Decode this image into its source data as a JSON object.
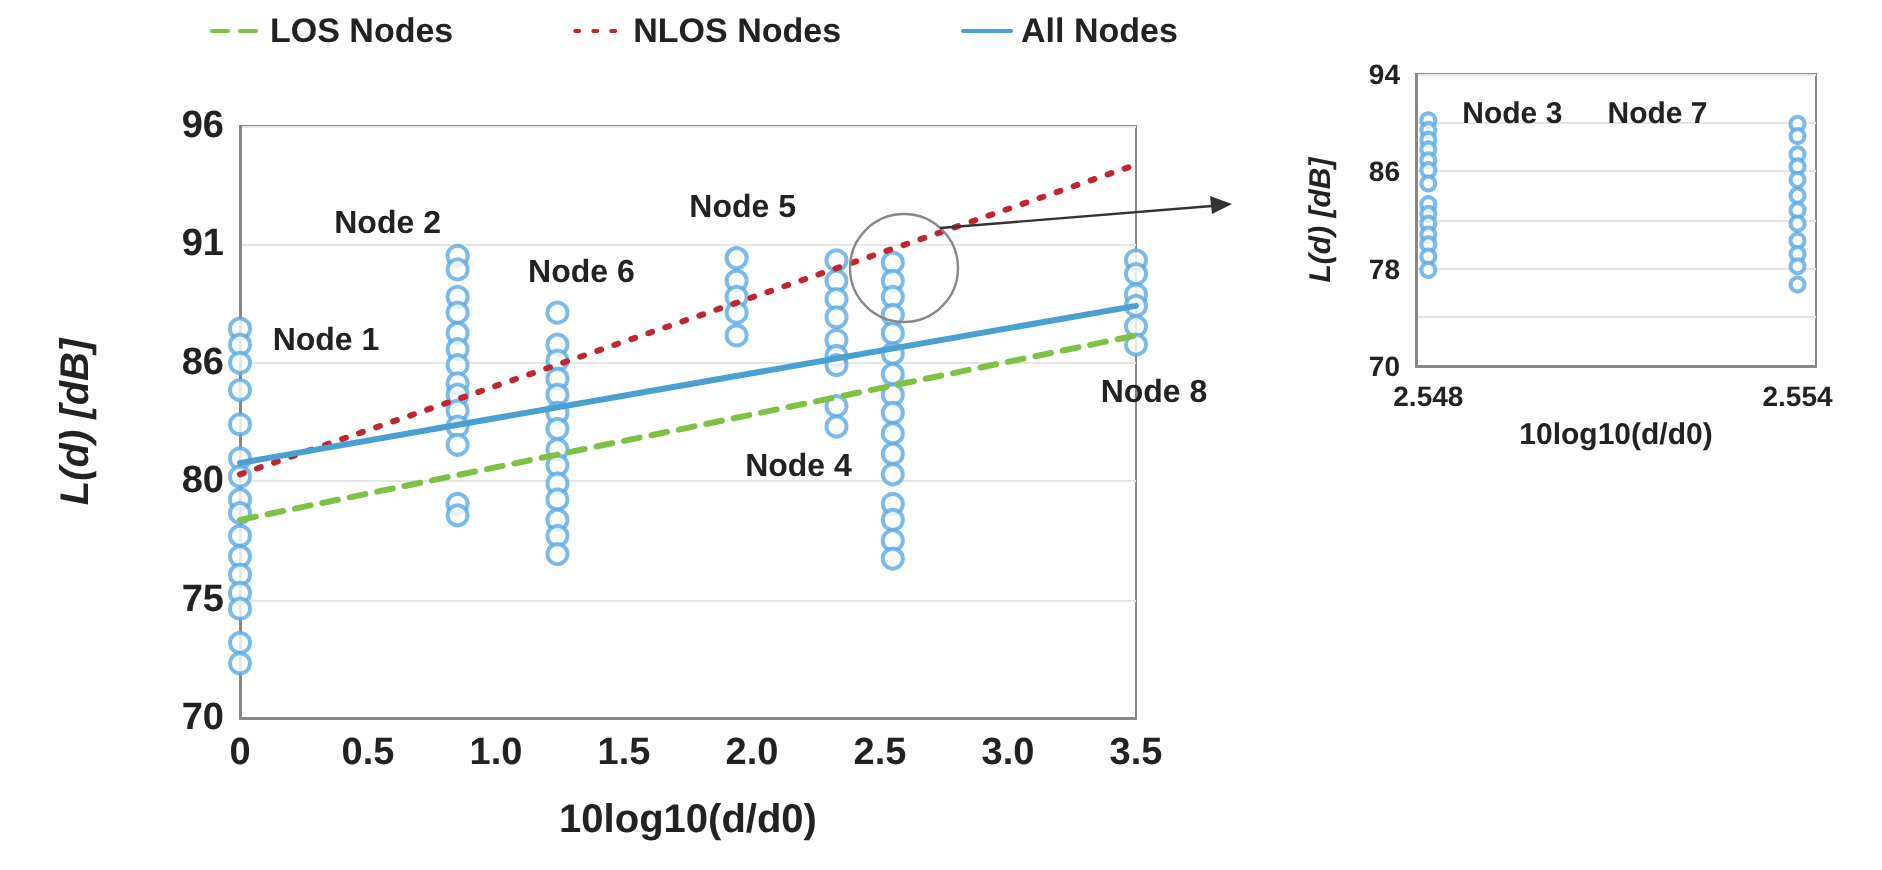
{
  "chart_data": [
    {
      "type": "scatter",
      "xlabel": "10log10(d/d0)",
      "ylabel": "L(d) [dB]",
      "xlim": [
        0,
        3.5
      ],
      "ylim": [
        70,
        96
      ],
      "xticks": [
        0,
        0.5,
        {
          "value": 1,
          "label": "1.0"
        },
        1.5,
        {
          "value": 2,
          "label": "2.0"
        },
        2.5,
        {
          "value": 3,
          "label": "3.0"
        },
        3.5
      ],
      "yticks": [
        70,
        {
          "value": 75.2,
          "label": "75"
        },
        {
          "value": 80.4,
          "label": "80"
        },
        {
          "value": 85.6,
          "label": "86"
        },
        {
          "value": 90.8,
          "label": "91"
        },
        96
      ],
      "grid": "y",
      "legend": "top",
      "marker": "circle",
      "series": [
        {
          "color": "#5aa9e6",
          "x": [
            0,
            0,
            0,
            0,
            0,
            0,
            0,
            0,
            0,
            0,
            0,
            0,
            0,
            0,
            0,
            0,
            0.85,
            0.85,
            0.85,
            0.85,
            0.85,
            0.85,
            0.85,
            0.85,
            0.85,
            0.85,
            0.85,
            0.85,
            0.85,
            0.85,
            1.24,
            1.24,
            1.24,
            1.24,
            1.24,
            1.24,
            1.24,
            1.24,
            1.24,
            1.24,
            1.24,
            1.24,
            1.24,
            1.24,
            1.94,
            1.94,
            1.94,
            1.94,
            1.94,
            2.33,
            2.33,
            2.33,
            2.33,
            2.33,
            2.33,
            2.33,
            2.33,
            2.33,
            2.55,
            2.55,
            2.55,
            2.55,
            2.55,
            2.55,
            2.55,
            2.55,
            2.55,
            2.55,
            2.55,
            2.55,
            2.55,
            2.55,
            2.55,
            2.55,
            3.5,
            3.5,
            3.5,
            3.5,
            3.5,
            3.5
          ],
          "values": [
            87.1,
            86.4,
            85.6,
            84.4,
            82.9,
            81.4,
            80.6,
            79.6,
            79.0,
            78.0,
            77.1,
            76.3,
            75.5,
            74.8,
            73.3,
            72.4,
            90.3,
            89.7,
            88.5,
            87.8,
            86.9,
            86.2,
            85.5,
            84.7,
            84.2,
            83.5,
            82.8,
            82.0,
            79.4,
            78.9,
            87.8,
            86.4,
            85.7,
            84.9,
            84.2,
            83.4,
            82.7,
            81.8,
            81.1,
            80.3,
            79.6,
            78.7,
            78.0,
            77.2,
            90.2,
            89.2,
            88.5,
            87.8,
            86.8,
            90.1,
            89.2,
            88.4,
            87.6,
            86.6,
            85.9,
            85.5,
            83.7,
            82.8,
            90.0,
            89.2,
            88.5,
            87.7,
            86.9,
            86.0,
            85.1,
            84.2,
            83.4,
            82.5,
            81.6,
            80.7,
            79.4,
            78.7,
            77.8,
            77.0,
            90.1,
            89.5,
            88.6,
            88.1,
            87.2,
            86.4
          ]
        },
        {
          "type": "line",
          "name": "LOS Nodes",
          "color": "#7dc242",
          "line_style": "dashed",
          "marker": "none",
          "x": [
            0,
            3.5
          ],
          "values": [
            78.7,
            86.8
          ]
        },
        {
          "type": "line",
          "name": "NLOS Nodes",
          "color": "#c0262d",
          "line_style": "dotted",
          "marker": "none",
          "x": [
            0,
            3.5
          ],
          "values": [
            80.7,
            94.3
          ]
        },
        {
          "type": "line",
          "name": "All Nodes",
          "color": "#4a9fd4",
          "line_style": "solid",
          "marker": "none",
          "x": [
            0,
            3.5
          ],
          "values": [
            81.2,
            88.1
          ]
        }
      ],
      "annotations": [
        {
          "text": "Node 1",
          "x": 0,
          "y": 87.1
        },
        {
          "text": "Node 2",
          "x": 0.85,
          "y": 90.3
        },
        {
          "text": "Node 6",
          "x": 1.24,
          "y": 87.8
        },
        {
          "text": "Node 5",
          "x": 1.94,
          "y": 90.2
        },
        {
          "text": "Node 4",
          "x": 2.33,
          "y": 82.8
        },
        {
          "text": "Node 8",
          "x": 3.5,
          "y": 86.4
        }
      ]
    },
    {
      "type": "scatter",
      "xlabel": "10log10(d/d0)",
      "ylabel": "L(d) [dB]",
      "xlim": [
        2.5478,
        2.5543
      ],
      "ylim": [
        70,
        94
      ],
      "xticks": [
        2.548,
        2.554
      ],
      "yticks": [
        70,
        {
          "value": 74,
          "label": null
        },
        78,
        {
          "value": 82,
          "label": null
        },
        86,
        {
          "value": 90,
          "label": null
        },
        94
      ],
      "grid": "y",
      "marker": "circle",
      "series": [
        {
          "color": "#5aa9e6",
          "x": [
            2.548,
            2.548,
            2.548,
            2.548,
            2.548,
            2.548,
            2.548,
            2.548,
            2.548,
            2.548,
            2.548,
            2.548,
            2.548,
            2.548,
            2.554,
            2.554,
            2.554,
            2.554,
            2.554,
            2.554,
            2.554,
            2.554,
            2.554,
            2.554,
            2.554,
            2.554
          ],
          "values": [
            90.2,
            89.4,
            88.6,
            87.8,
            86.9,
            86.1,
            85.0,
            83.3,
            82.5,
            81.7,
            80.8,
            80.0,
            79.0,
            77.9,
            89.9,
            88.9,
            87.4,
            86.4,
            85.3,
            84.0,
            82.8,
            81.7,
            80.3,
            79.2,
            78.2,
            76.7
          ]
        }
      ],
      "annotations": [
        {
          "text": "Node 3",
          "x": 2.548,
          "y": 90.2
        },
        {
          "text": "Node 7",
          "x": 2.554,
          "y": 89.9
        }
      ]
    }
  ]
}
